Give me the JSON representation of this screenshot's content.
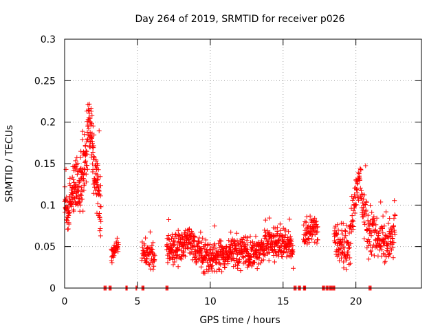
{
  "chart_data": {
    "type": "scatter",
    "title": "Day 264 of 2019, SRMTID for receiver p026",
    "xlabel": "GPS time / hours",
    "ylabel": "SRMTID / TECUs",
    "xlim": [
      0,
      24.5
    ],
    "ylim": [
      0,
      0.3
    ],
    "x_ticks": [
      0,
      5,
      10,
      15,
      20
    ],
    "x_tick_labels": [
      "0",
      "5",
      "10",
      "15",
      "20"
    ],
    "y_ticks": [
      0,
      0.05,
      0.1,
      0.15,
      0.2,
      0.25,
      0.3
    ],
    "y_tick_labels": [
      "0",
      "0.05",
      "0.1",
      "0.15",
      "0.2",
      "0.25",
      "0.3"
    ],
    "grid": true,
    "marker": "plus",
    "color": "#ff0000",
    "zero_segments": [
      [
        2.7,
        2.85
      ],
      [
        3.05,
        3.2
      ],
      [
        4.2,
        4.3
      ],
      [
        4.9,
        4.95
      ],
      [
        5.3,
        5.45
      ],
      [
        6.95,
        7.1
      ],
      [
        15.75,
        15.9
      ],
      [
        16.05,
        16.2
      ],
      [
        16.4,
        16.55
      ],
      [
        17.7,
        17.85
      ],
      [
        17.95,
        18.1
      ],
      [
        18.2,
        18.35
      ],
      [
        18.4,
        18.55
      ],
      [
        20.9,
        21.05
      ]
    ],
    "segments": [
      {
        "x_start": 0.0,
        "x_end": 0.5,
        "profile": [
          [
            0.0,
            0.1
          ],
          [
            0.15,
            0.09
          ],
          [
            0.3,
            0.1
          ],
          [
            0.5,
            0.11
          ]
        ],
        "spread": 0.03,
        "count": 50
      },
      {
        "x_start": 0.5,
        "x_end": 2.5,
        "profile": [
          [
            0.5,
            0.11
          ],
          [
            0.8,
            0.13
          ],
          [
            1.0,
            0.12
          ],
          [
            1.3,
            0.14
          ],
          [
            1.55,
            0.18
          ],
          [
            1.7,
            0.2
          ],
          [
            1.9,
            0.17
          ],
          [
            2.1,
            0.14
          ],
          [
            2.3,
            0.12
          ],
          [
            2.5,
            0.08
          ]
        ],
        "spread": 0.05,
        "count": 230
      },
      {
        "x_start": 3.2,
        "x_end": 3.7,
        "profile": [
          [
            3.2,
            0.04
          ],
          [
            3.45,
            0.045
          ],
          [
            3.7,
            0.05
          ]
        ],
        "spread": 0.015,
        "count": 40
      },
      {
        "x_start": 5.3,
        "x_end": 6.2,
        "profile": [
          [
            5.3,
            0.045
          ],
          [
            5.7,
            0.04
          ],
          [
            6.2,
            0.04
          ]
        ],
        "spread": 0.02,
        "count": 65
      },
      {
        "x_start": 7.0,
        "x_end": 15.7,
        "profile": [
          [
            7.0,
            0.045
          ],
          [
            8.0,
            0.05
          ],
          [
            8.5,
            0.055
          ],
          [
            9.0,
            0.045
          ],
          [
            10.0,
            0.035
          ],
          [
            11.0,
            0.04
          ],
          [
            12.0,
            0.045
          ],
          [
            13.0,
            0.04
          ],
          [
            14.0,
            0.055
          ],
          [
            15.0,
            0.05
          ],
          [
            15.7,
            0.045
          ]
        ],
        "spread": 0.025,
        "count": 720
      },
      {
        "x_start": 16.4,
        "x_end": 17.4,
        "profile": [
          [
            16.4,
            0.06
          ],
          [
            17.0,
            0.075
          ],
          [
            17.4,
            0.07
          ]
        ],
        "spread": 0.025,
        "count": 70
      },
      {
        "x_start": 18.5,
        "x_end": 22.7,
        "profile": [
          [
            18.5,
            0.06
          ],
          [
            19.0,
            0.05
          ],
          [
            19.5,
            0.045
          ],
          [
            19.9,
            0.1
          ],
          [
            20.2,
            0.13
          ],
          [
            20.5,
            0.09
          ],
          [
            20.9,
            0.07
          ],
          [
            21.5,
            0.06
          ],
          [
            22.0,
            0.05
          ],
          [
            22.7,
            0.07
          ]
        ],
        "spread": 0.035,
        "count": 320
      }
    ]
  }
}
